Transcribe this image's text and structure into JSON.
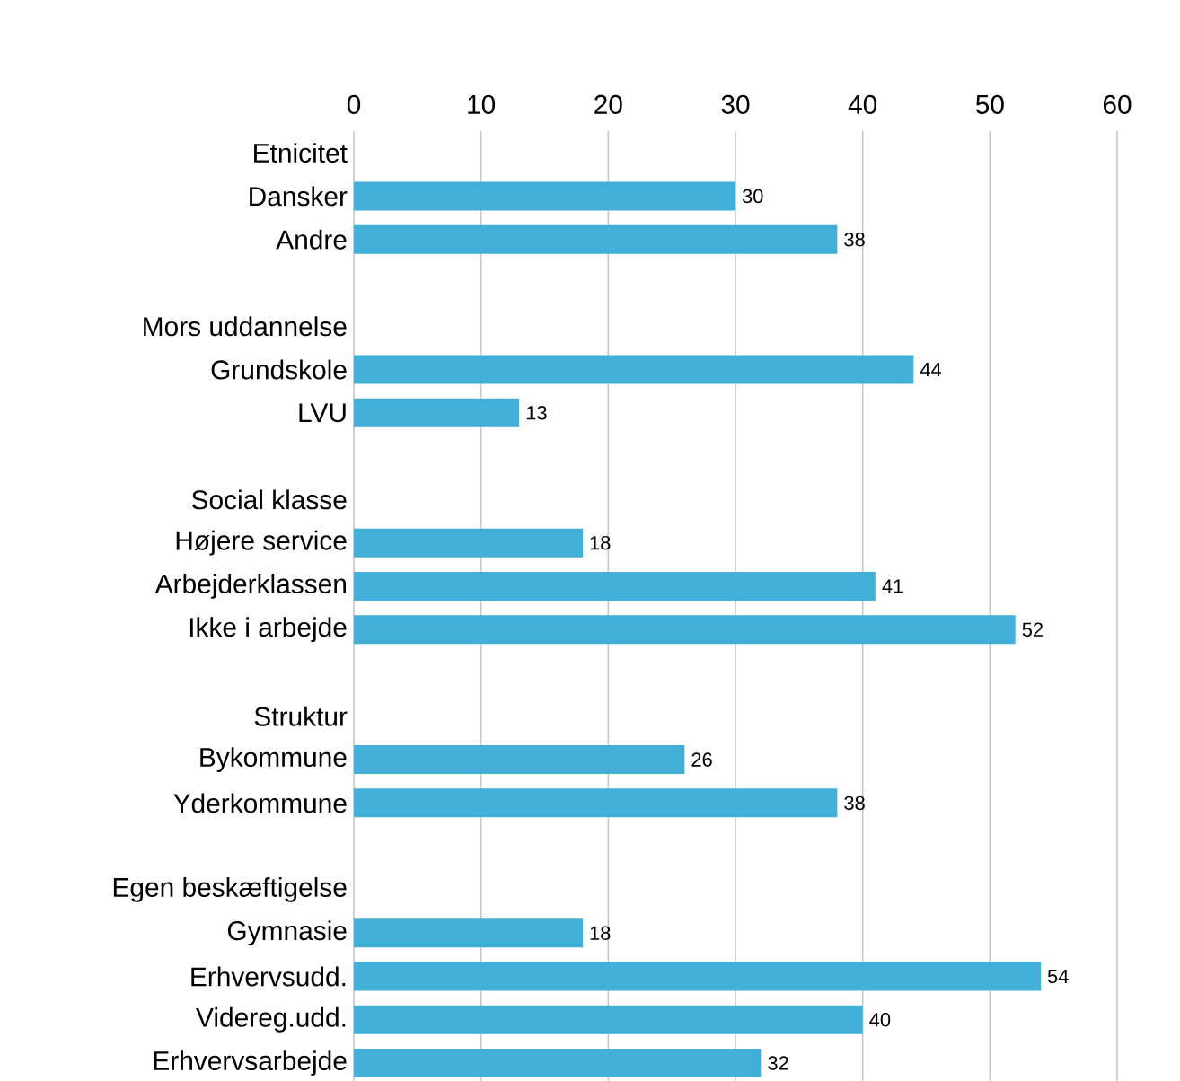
{
  "chart_data": {
    "type": "bar",
    "orientation": "horizontal",
    "color": "#41afd8",
    "categories": [
      "Etnicitet",
      "Dansker",
      "Andre",
      null,
      "Mors uddannelse",
      "Grundskole",
      "LVU",
      null,
      "Social klasse",
      "Højere service",
      "Arbejderklassen",
      "Ikke i arbejde",
      null,
      "Struktur",
      "Bykommune",
      "Yderkommune",
      null,
      "Egen beskæftigelse",
      "Gymnasie",
      "Erhvervsudd.",
      "Videreg.udd.",
      "Erhvervsarbejde"
    ],
    "values": [
      null,
      30,
      38,
      null,
      null,
      44,
      13,
      null,
      null,
      18,
      41,
      52,
      null,
      null,
      26,
      38,
      null,
      null,
      18,
      54,
      40,
      32
    ],
    "xlim": [
      0,
      60
    ],
    "xticks": [
      0,
      10,
      20,
      30,
      40,
      50,
      60
    ],
    "grid": "x",
    "data_labels": true
  }
}
